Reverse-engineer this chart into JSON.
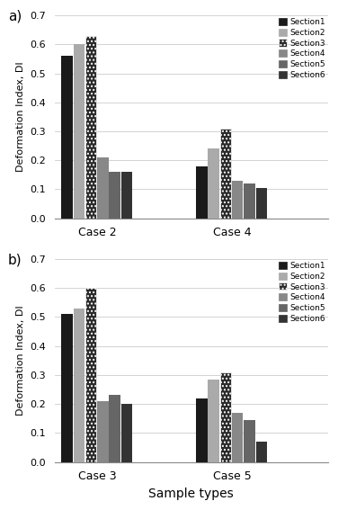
{
  "panel_a": {
    "cases": [
      "Case 2",
      "Case 4"
    ],
    "sections": [
      "Section1",
      "Section2",
      "Section3",
      "Section4",
      "Section5",
      "Section6"
    ],
    "values": {
      "Case 2": [
        0.56,
        0.6,
        0.63,
        0.21,
        0.16,
        0.16
      ],
      "Case 4": [
        0.18,
        0.24,
        0.31,
        0.13,
        0.12,
        0.105
      ]
    },
    "xlabel": "Sample types",
    "ylabel": "Deformation Index, DI",
    "ylim": [
      0.0,
      0.7
    ],
    "yticks": [
      0.0,
      0.1,
      0.2,
      0.3,
      0.4,
      0.5,
      0.6,
      0.7
    ],
    "label": "a)"
  },
  "panel_b": {
    "cases": [
      "Case 3",
      "Case 5"
    ],
    "sections": [
      "Section1",
      "Section2",
      "Section3",
      "Section4",
      "Section5",
      "Section6"
    ],
    "values": {
      "Case 3": [
        0.51,
        0.53,
        0.6,
        0.21,
        0.23,
        0.2
      ],
      "Case 5": [
        0.22,
        0.285,
        0.31,
        0.17,
        0.145,
        0.07
      ]
    },
    "xlabel": "Sample types",
    "ylabel": "Deformation Index, DI",
    "ylim": [
      0.0,
      0.7
    ],
    "yticks": [
      0.0,
      0.1,
      0.2,
      0.3,
      0.4,
      0.5,
      0.6,
      0.7
    ],
    "label": "b)"
  },
  "section_styles": [
    {
      "color": "#1a1a1a",
      "hatch": "",
      "label": "Section1"
    },
    {
      "color": "#aaaaaa",
      "hatch": "",
      "label": "Section2"
    },
    {
      "color": "#2a2a2a",
      "hatch": "....",
      "label": "Section3"
    },
    {
      "color": "#888888",
      "hatch": "",
      "label": "Section4"
    },
    {
      "color": "#666666",
      "hatch": "",
      "label": "Section5"
    },
    {
      "color": "#333333",
      "hatch": "",
      "label": "Section6"
    }
  ]
}
